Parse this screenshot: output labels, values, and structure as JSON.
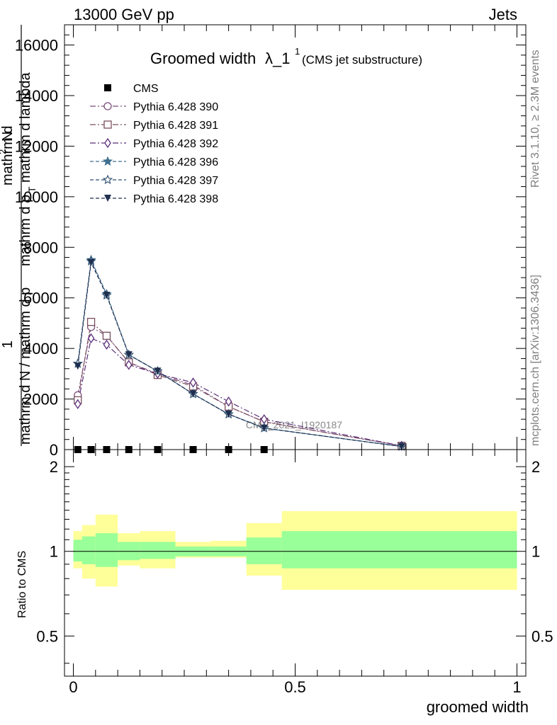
{
  "header": {
    "left": "13000 GeV pp",
    "right": "Jets"
  },
  "side_labels": {
    "rivet": "Rivet 3.1.10, ≥ 2.3M events",
    "mcplots": "mcplots.cern.ch [arXiv:1306.3436]"
  },
  "watermark": "CMS_2021_I1920187",
  "chart_data": [
    {
      "type": "line",
      "title_main": "Groomed width",
      "title_symbol": "λ_1",
      "title_sup": "1",
      "title_sub": "(CMS jet substructure)",
      "ylabel_lines": [
        "1",
        "mathrm d N / mathrm d p_T mathrm d lambda",
        "mathrm d^2 N"
      ],
      "ylabel_display": {
        "one": "1",
        "denom": "mathrm d N / mathrm d p",
        "denom_tail": "mathrm d p",
        "t_sub": "T",
        "lambda": "mathrm d lambda",
        "num": "mathrm d",
        "num_sup": "2",
        "num_tail": "N"
      },
      "xlim": [
        -0.02,
        1.02
      ],
      "ylim": [
        0,
        16800
      ],
      "yticks": [
        0,
        2000,
        4000,
        6000,
        8000,
        10000,
        12000,
        14000,
        16000
      ],
      "ytick_labels": [
        "0",
        "2000",
        "4000",
        "6000",
        "8000",
        "10000",
        "12000",
        "14000",
        "16000"
      ],
      "legend_placement": "top-left",
      "series": [
        {
          "name": "CMS",
          "color": "#000000",
          "marker": "square-filled",
          "x": [
            0.01,
            0.04,
            0.075,
            0.125,
            0.19,
            0.27,
            0.35,
            0.43
          ],
          "y": [
            0,
            0,
            0,
            0,
            0,
            0,
            0,
            0
          ]
        },
        {
          "name": "Pythia 6.428 390",
          "color": "#7b4f7b",
          "marker": "circle-open",
          "dash": "8,3,2,3",
          "x": [
            0.01,
            0.04,
            0.075,
            0.125,
            0.19,
            0.27,
            0.35,
            0.43,
            0.74
          ],
          "y": [
            2150,
            4850,
            4500,
            3450,
            3000,
            2550,
            1700,
            1100,
            150
          ]
        },
        {
          "name": "Pythia 6.428 391",
          "color": "#7b4f5f",
          "marker": "square-open",
          "dash": "8,3,2,3",
          "x": [
            0.01,
            0.04,
            0.075,
            0.125,
            0.19,
            0.27,
            0.35,
            0.43,
            0.74
          ],
          "y": [
            1950,
            5050,
            4500,
            3450,
            2950,
            2500,
            1700,
            1100,
            150
          ]
        },
        {
          "name": "Pythia 6.428 392",
          "color": "#5b2f7b",
          "marker": "diamond-open",
          "dash": "8,3,2,3",
          "x": [
            0.01,
            0.04,
            0.075,
            0.125,
            0.19,
            0.27,
            0.35,
            0.43,
            0.74
          ],
          "y": [
            1800,
            4400,
            4150,
            3350,
            3000,
            2650,
            1900,
            1200,
            150
          ]
        },
        {
          "name": "Pythia 6.428 396",
          "color": "#3f6f8f",
          "marker": "star-filled",
          "dash": "5,3",
          "x": [
            0.01,
            0.04,
            0.075,
            0.125,
            0.19,
            0.27,
            0.35,
            0.43,
            0.74
          ],
          "y": [
            3400,
            7500,
            6150,
            3750,
            3100,
            2200,
            1400,
            850,
            120
          ]
        },
        {
          "name": "Pythia 6.428 397",
          "color": "#2f4f6f",
          "marker": "star-open",
          "dash": "5,3",
          "x": [
            0.01,
            0.04,
            0.075,
            0.125,
            0.19,
            0.27,
            0.35,
            0.43,
            0.74
          ],
          "y": [
            3400,
            7450,
            6100,
            3750,
            3100,
            2200,
            1400,
            850,
            120
          ]
        },
        {
          "name": "Pythia 6.428 398",
          "color": "#1f2f4f",
          "marker": "triangle-down-filled",
          "dash": "5,3",
          "x": [
            0.01,
            0.04,
            0.075,
            0.125,
            0.19,
            0.27,
            0.35,
            0.43,
            0.74
          ],
          "y": [
            3300,
            7400,
            6100,
            3750,
            3100,
            2200,
            1400,
            850,
            120
          ]
        }
      ]
    },
    {
      "type": "area",
      "ylabel": "Ratio to CMS",
      "xlabel": "groomed width",
      "xlim": [
        -0.02,
        1.02
      ],
      "ylim": [
        0.36,
        2.3
      ],
      "yscale": "log",
      "yticks": [
        0.5,
        1,
        2
      ],
      "ytick_labels": [
        "0.5",
        "1",
        "2"
      ],
      "xticks": [
        0,
        0.5,
        1
      ],
      "xtick_labels": [
        "0",
        "0.5",
        "1"
      ],
      "reference_line": 1,
      "band_colors": {
        "inner": "#99ff99",
        "outer": "#ffff99"
      },
      "bins": [
        {
          "lo": 0.0,
          "hi": 0.02,
          "inner": [
            0.92,
            1.1
          ],
          "outer": [
            0.87,
            1.18
          ]
        },
        {
          "lo": 0.02,
          "hi": 0.05,
          "inner": [
            0.9,
            1.13
          ],
          "outer": [
            0.8,
            1.24
          ]
        },
        {
          "lo": 0.05,
          "hi": 0.1,
          "inner": [
            0.88,
            1.16
          ],
          "outer": [
            0.75,
            1.35
          ]
        },
        {
          "lo": 0.1,
          "hi": 0.15,
          "inner": [
            0.93,
            1.08
          ],
          "outer": [
            0.89,
            1.16
          ]
        },
        {
          "lo": 0.15,
          "hi": 0.23,
          "inner": [
            0.94,
            1.08
          ],
          "outer": [
            0.87,
            1.18
          ]
        },
        {
          "lo": 0.23,
          "hi": 0.31,
          "inner": [
            0.96,
            1.04
          ],
          "outer": [
            0.95,
            1.08
          ]
        },
        {
          "lo": 0.31,
          "hi": 0.39,
          "inner": [
            0.96,
            1.04
          ],
          "outer": [
            0.95,
            1.09
          ]
        },
        {
          "lo": 0.39,
          "hi": 0.47,
          "inner": [
            0.9,
            1.12
          ],
          "outer": [
            0.82,
            1.26
          ]
        },
        {
          "lo": 0.47,
          "hi": 1.0,
          "inner": [
            0.87,
            1.18
          ],
          "outer": [
            0.73,
            1.39
          ]
        }
      ]
    }
  ]
}
